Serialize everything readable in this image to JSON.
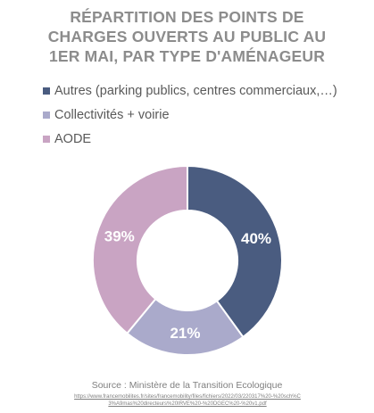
{
  "chart_data": {
    "type": "pie",
    "title_lines": [
      "RÉPARTITION DES POINTS DE",
      "CHARGES OUVERTS AU PUBLIC AU",
      "1ER MAI, PAR TYPE D'AMÉNAGEUR"
    ],
    "categories": [
      "Autres (parking publics, centres commerciaux,…)",
      "Collectivités + voirie",
      "AODE"
    ],
    "values": [
      40,
      21,
      39
    ],
    "labels": [
      "40%",
      "21%",
      "39%"
    ],
    "colors": [
      "#4a5c80",
      "#aaaacb",
      "#c9a4c3"
    ],
    "donut": true,
    "legend_position": "top-left"
  },
  "footer": {
    "source": "Source : Ministère de la Transition Ecologique",
    "url": "https://www.francemobilites.fr/sites/francemobility/files/fichiers/2022/03/220317%20-%20sch%C3%A9mas%20directeurs%20IRVE%20-%20DGEC%20-%20v1.pdf"
  }
}
